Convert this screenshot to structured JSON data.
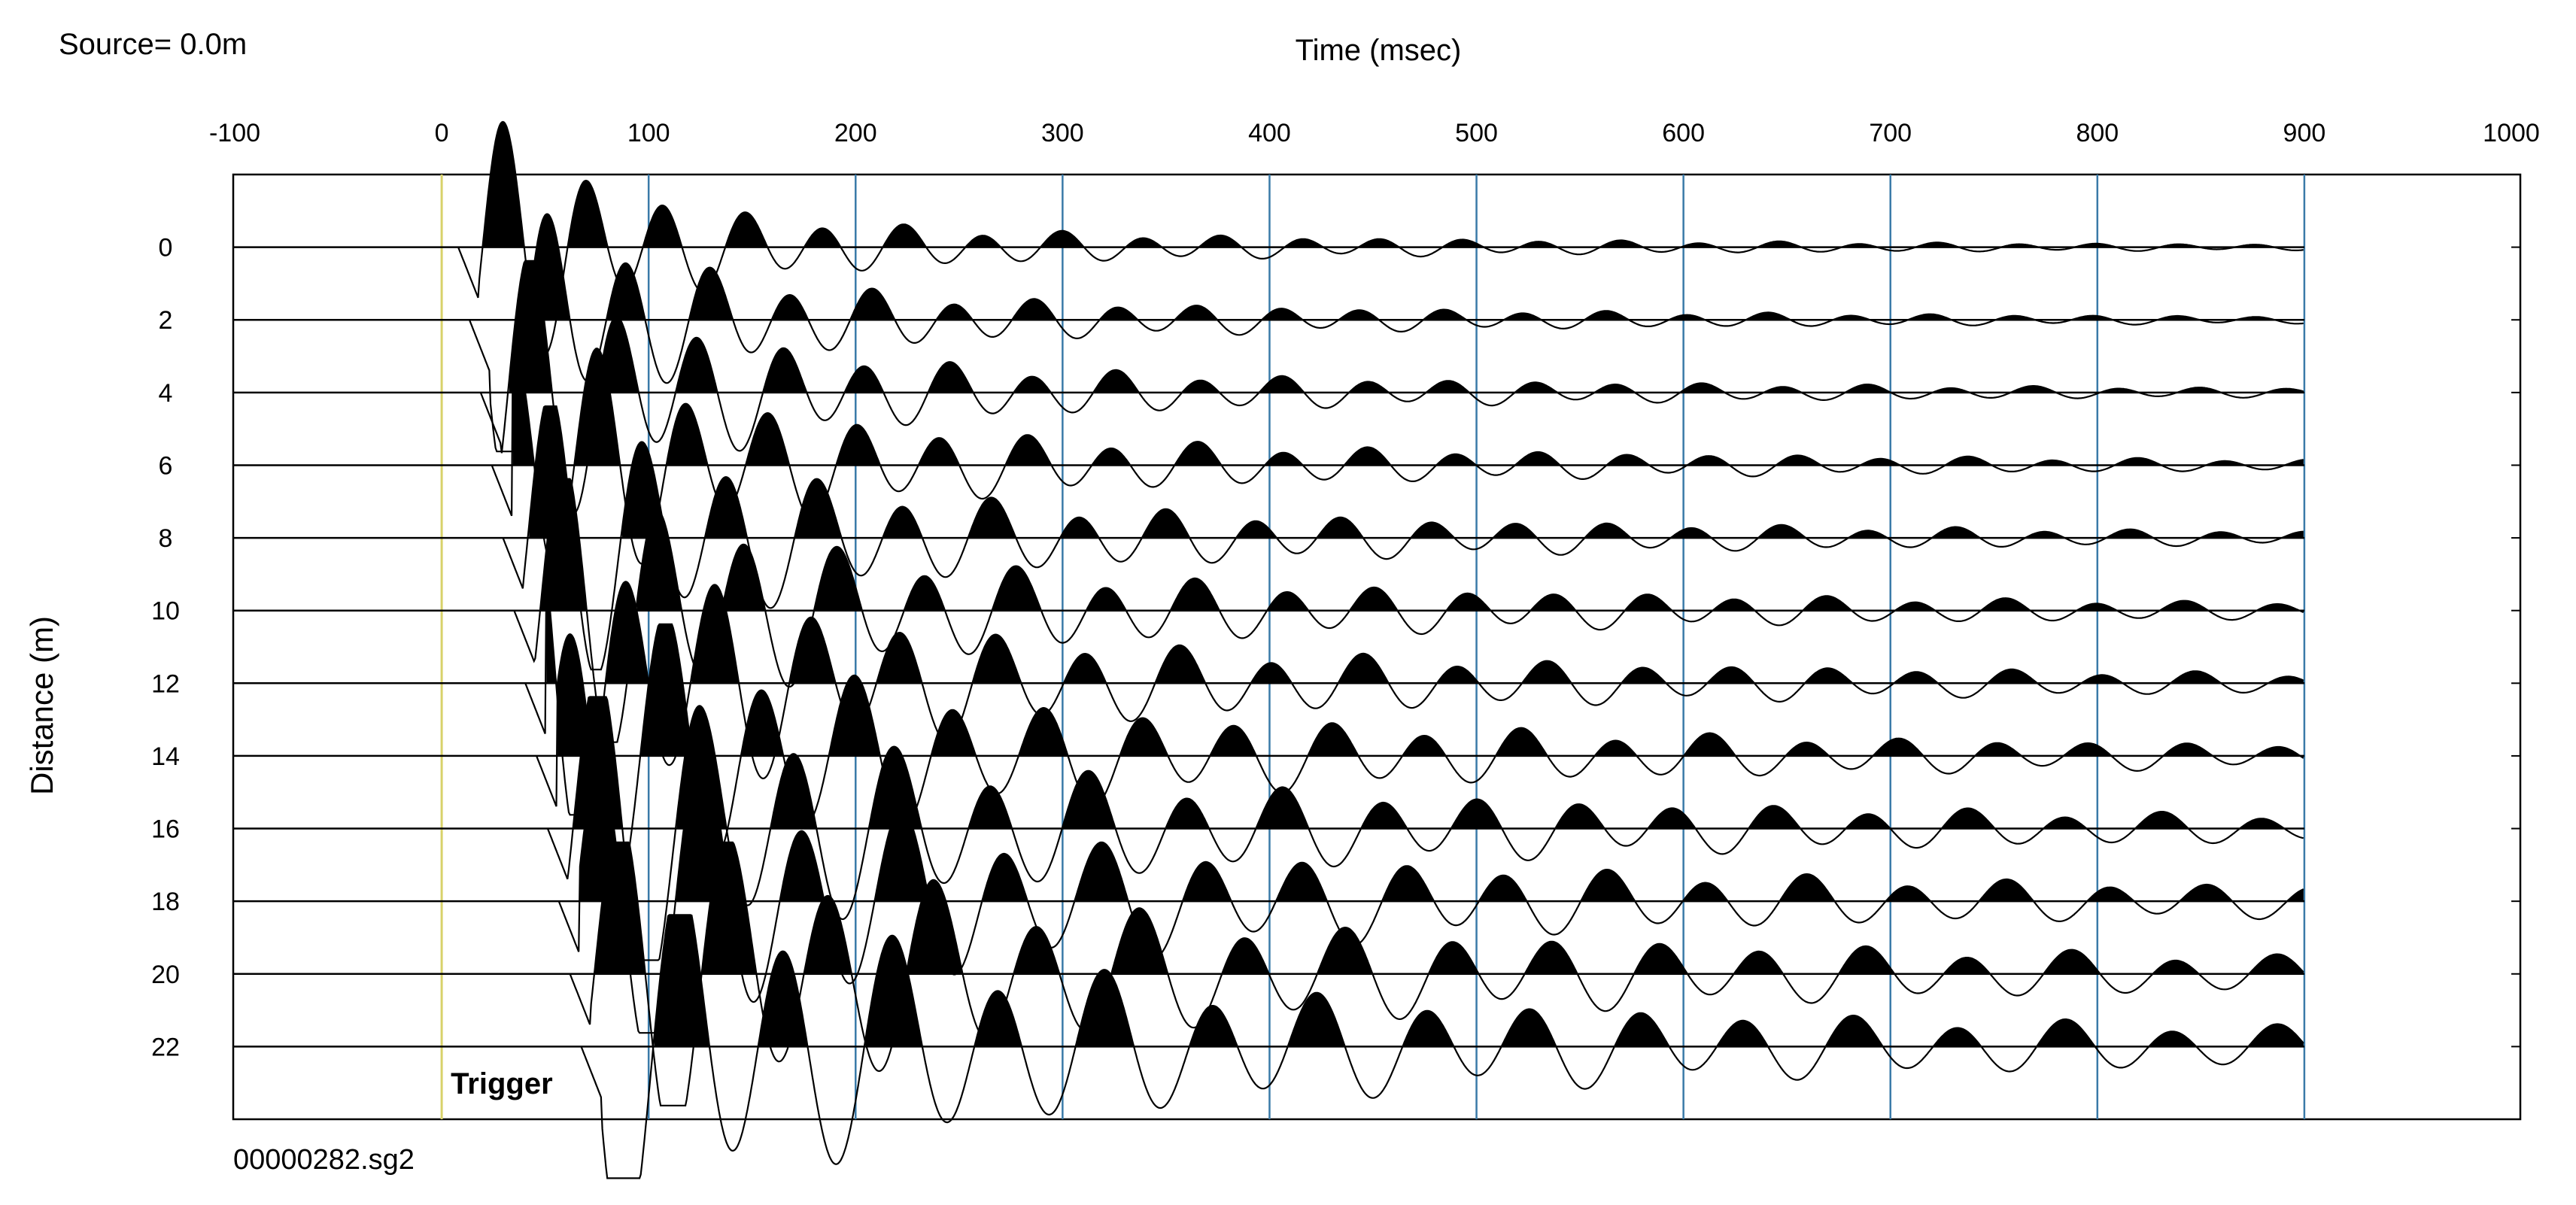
{
  "header": {
    "source_label": "Source=  0.0m",
    "file_name": "00000282.sg2",
    "trigger_label": "Trigger"
  },
  "chart_data": {
    "type": "seismic-wiggle",
    "xlabel": "Time (msec)",
    "ylabel": "Distance (m)",
    "xlim": [
      -100,
      1000
    ],
    "ylim": [
      24,
      -2
    ],
    "x_ticks": [
      "-100",
      "0",
      "100",
      "200",
      "300",
      "400",
      "500",
      "600",
      "700",
      "800",
      "900",
      "1000"
    ],
    "x_tick_values": [
      -100,
      0,
      100,
      200,
      300,
      400,
      500,
      600,
      700,
      800,
      900,
      1000
    ],
    "y_ticks": [
      "0",
      "2",
      "4",
      "6",
      "8",
      "10",
      "12",
      "14",
      "16",
      "18",
      "20",
      "22"
    ],
    "trace_offsets_m": [
      0,
      2,
      4,
      6,
      8,
      10,
      12,
      14,
      16,
      18,
      20,
      22
    ],
    "record_end_ms": 900,
    "trigger_time_ms": 0,
    "fill": "positive lobes filled black (variable-area wiggle)",
    "grid": "vertical lines every 100 ms",
    "colors": {
      "grid": "#3a7aa8",
      "trigger": "#d8d26a",
      "trace": "#000000"
    }
  }
}
